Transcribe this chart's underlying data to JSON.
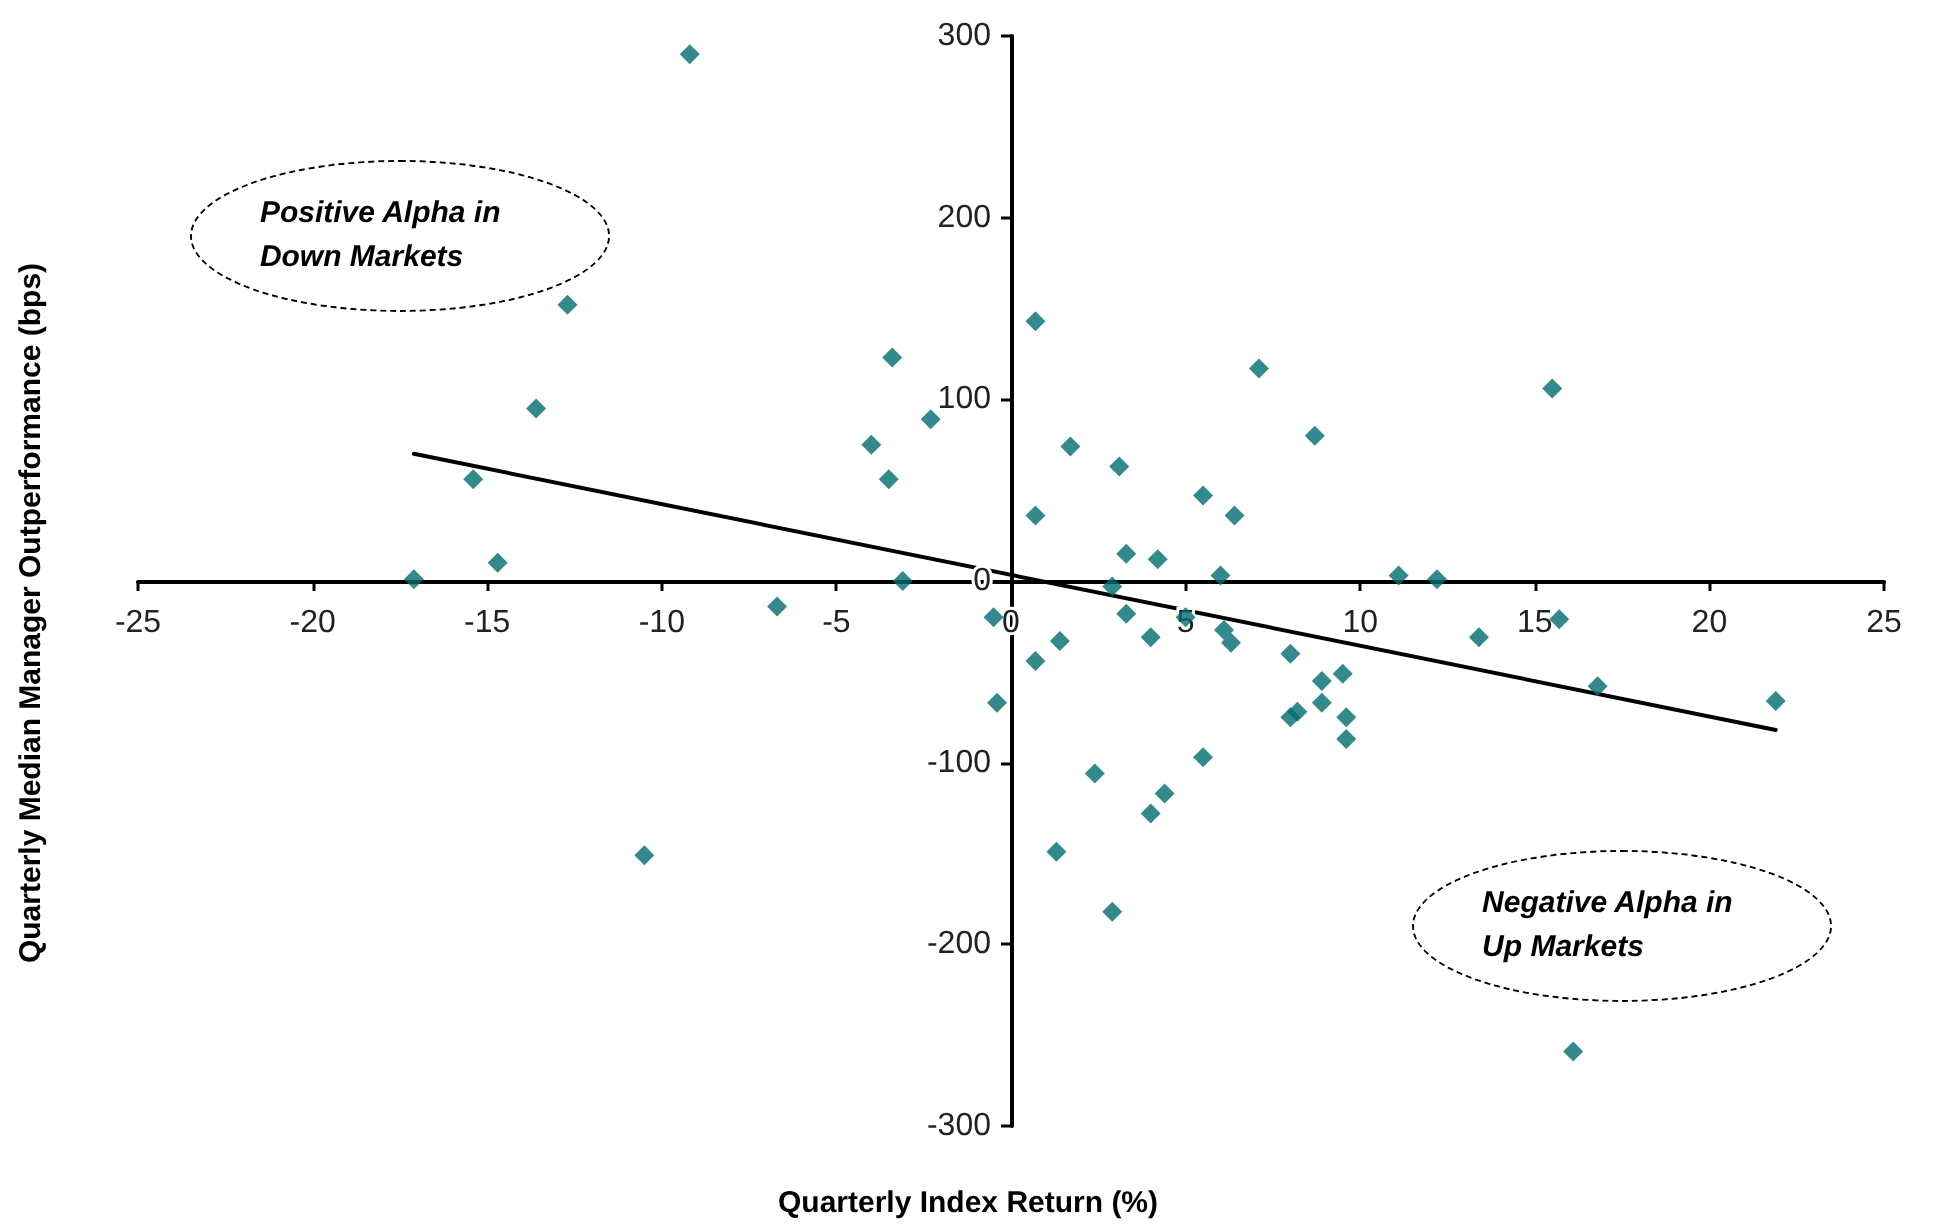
{
  "chart_data": {
    "type": "scatter",
    "xlabel": "Quarterly Index Return (%)",
    "ylabel": "Quarterly Median Manager Outperformance (bps)",
    "xlim": [
      -25,
      25
    ],
    "xticks": [
      -25,
      -20,
      -15,
      -10,
      -5,
      0,
      5,
      10,
      15,
      20,
      25
    ],
    "ylim": [
      -300,
      300
    ],
    "yticks": [
      -300,
      -200,
      -100,
      0,
      100,
      200,
      300
    ],
    "grid": false,
    "marker": "diamond",
    "annotations": [
      "Positive Alpha in Down Markets",
      "Negative Alpha in Up Markets"
    ],
    "series": [
      {
        "color": "#006d70",
        "x": [
          -9.2,
          -12.7,
          -13.6,
          -15.4,
          -14.7,
          -17.1,
          -10.5,
          -3.4,
          -2.3,
          -4.0,
          -3.5,
          -3.1,
          -6.7,
          -0.5,
          -0.4,
          0.7,
          0.7,
          0.7,
          1.7,
          1.4,
          1.3,
          2.4,
          3.1,
          2.9,
          3.3,
          3.3,
          2.9,
          4.0,
          4.2,
          4.0,
          4.4,
          5.5,
          5.5,
          5.0,
          6.0,
          6.4,
          6.1,
          6.3,
          7.1,
          8.0,
          8.0,
          8.2,
          8.7,
          8.9,
          8.9,
          9.5,
          9.6,
          9.6,
          11.1,
          12.2,
          13.4,
          15.5,
          15.7,
          16.8,
          21.9,
          16.1
        ],
        "values": [
          290,
          152,
          95,
          56,
          10,
          1,
          -151,
          123,
          89,
          75,
          56,
          0,
          -14,
          -20,
          -67,
          143,
          36,
          -44,
          74,
          -33,
          -149,
          -106,
          63,
          -3,
          15,
          -18,
          -182,
          -31,
          12,
          -128,
          -117,
          -97,
          47,
          -20,
          3,
          36,
          -27,
          -34,
          117,
          -40,
          -75,
          -72,
          80,
          -55,
          -67,
          -51,
          -75,
          -87,
          3,
          1,
          -31,
          106,
          -21,
          -58,
          -66,
          -259
        ]
      },
      {
        "type": "line",
        "color": "#000000",
        "marker": "none",
        "x": [
          -17.1,
          21.9
        ],
        "values": [
          70,
          -82
        ]
      }
    ]
  }
}
